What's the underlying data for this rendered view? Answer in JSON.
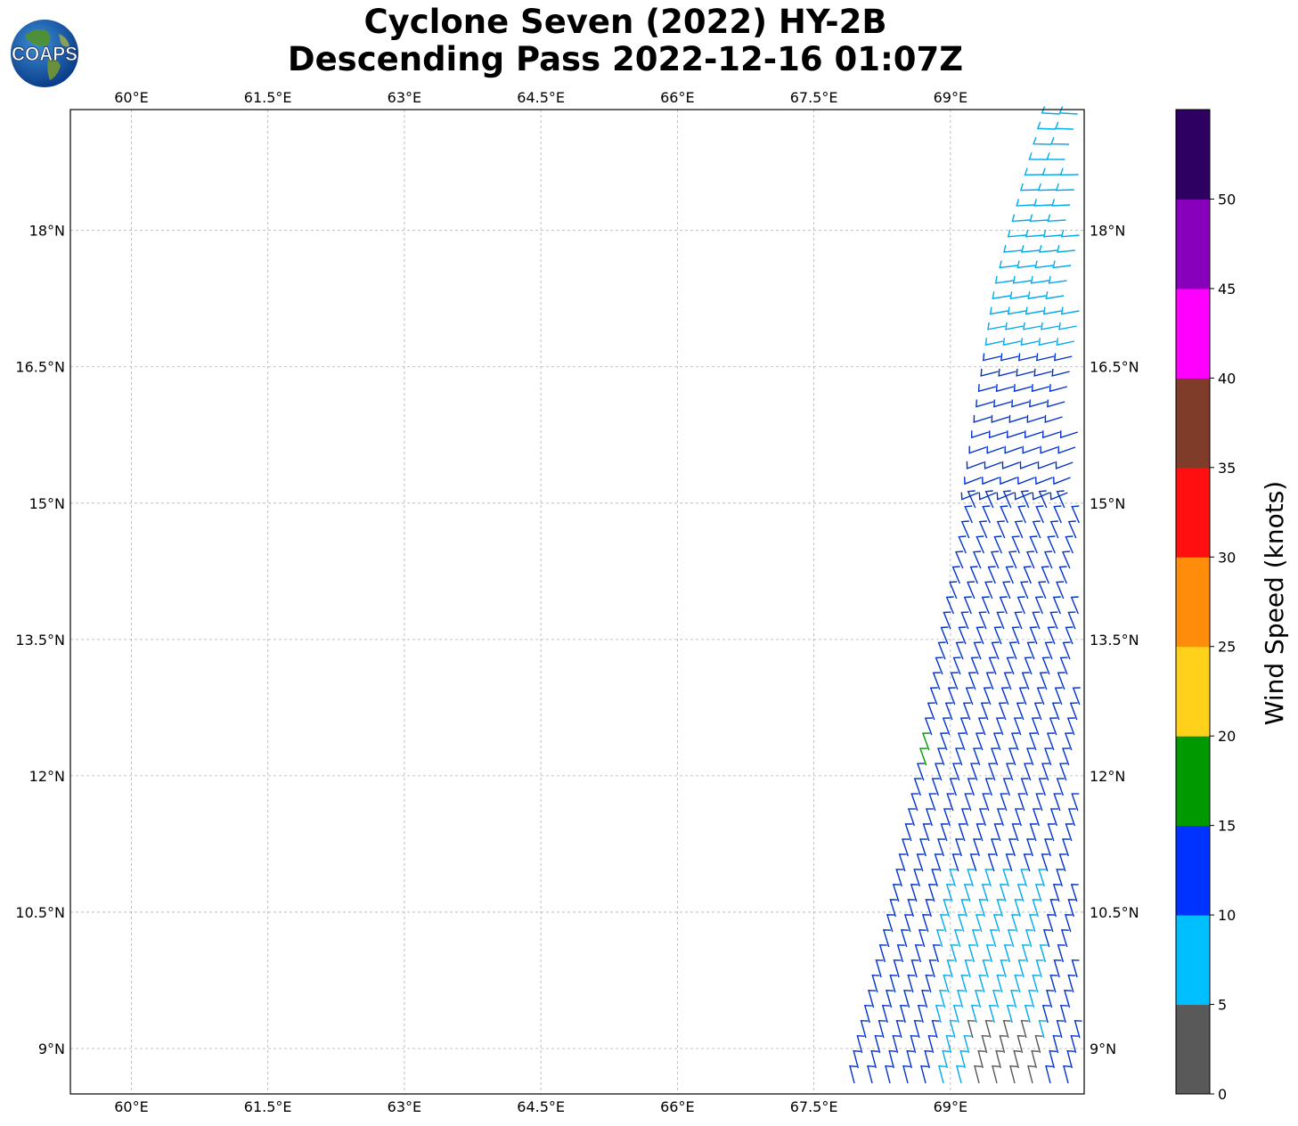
{
  "title": {
    "line1": "Cyclone Seven (2022) HY-2B",
    "line2": "Descending Pass 2022-12-16 01:07Z"
  },
  "logo": {
    "text": "COAPS",
    "icon": "globe-logo-icon"
  },
  "map": {
    "lon_range": [
      59.33,
      70.47
    ],
    "lat_range": [
      8.5,
      19.33
    ],
    "lon_ticks": [
      "60°E",
      "61.5°E",
      "63°E",
      "64.5°E",
      "66°E",
      "67.5°E",
      "69°E"
    ],
    "lon_values": [
      60,
      61.5,
      63,
      64.5,
      66,
      67.5,
      69
    ],
    "lat_ticks": [
      "18°N",
      "16.5°N",
      "15°N",
      "13.5°N",
      "12°N",
      "10.5°N",
      "9°N"
    ],
    "lat_values": [
      18,
      16.5,
      15,
      13.5,
      12,
      10.5,
      9
    ],
    "gridlines": true,
    "barbs": "wind-barbs"
  },
  "colorbar": {
    "label": "Wind Speed (knots)",
    "ticks": [
      "0",
      "5",
      "10",
      "15",
      "20",
      "25",
      "30",
      "35",
      "40",
      "45",
      "50"
    ],
    "colors": [
      "#595959",
      "#00bfff",
      "#0033ff",
      "#009900",
      "#ffd11a",
      "#ff8c0a",
      "#ff0f0f",
      "#7f3d29",
      "#ff00ff",
      "#8800bb",
      "#2d0062"
    ]
  }
}
